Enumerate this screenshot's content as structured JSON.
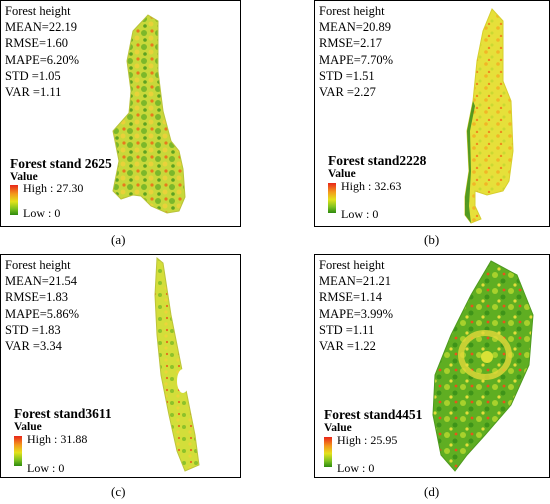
{
  "panels": [
    {
      "caption": "(a)",
      "stats": [
        "Forest height",
        "MEAN=22.19",
        "RMSE=1.60",
        "MAPE=6.20%",
        "STD =1.05",
        "VAR =1.11"
      ],
      "stand": "Forest stand 2625",
      "legend_title": "Value",
      "high": "High : 27.30",
      "low": "Low : 0"
    },
    {
      "caption": "(b)",
      "stats": [
        "Forest height",
        "MEAN=20.89",
        "RMSE=2.17",
        "MAPE=7.70%",
        "STD =1.51",
        "VAR =2.27"
      ],
      "stand": "Forest stand2228",
      "legend_title": "Value",
      "high": "High : 32.63",
      "low": "Low : 0"
    },
    {
      "caption": "(c)",
      "stats": [
        "Forest height",
        "MEAN=21.54",
        "RMSE=1.83",
        "MAPE=5.86%",
        "STD =1.83",
        "VAR =3.34"
      ],
      "stand": "Forest stand3611",
      "legend_title": "Value",
      "high": "High : 31.88",
      "low": "Low : 0"
    },
    {
      "caption": "(d)",
      "stats": [
        "Forest height",
        "MEAN=21.21",
        "RMSE=1.14",
        "MAPE=3.99%",
        "STD =1.11",
        "VAR =1.22"
      ],
      "stand": "Forest stand4451",
      "legend_title": "Value",
      "high": "High : 25.95",
      "low": "Low : 0"
    }
  ],
  "legend_colors": [
    "#e8251a",
    "#f39a1c",
    "#e4e21c",
    "#7cc21f",
    "#2e8a0e"
  ]
}
